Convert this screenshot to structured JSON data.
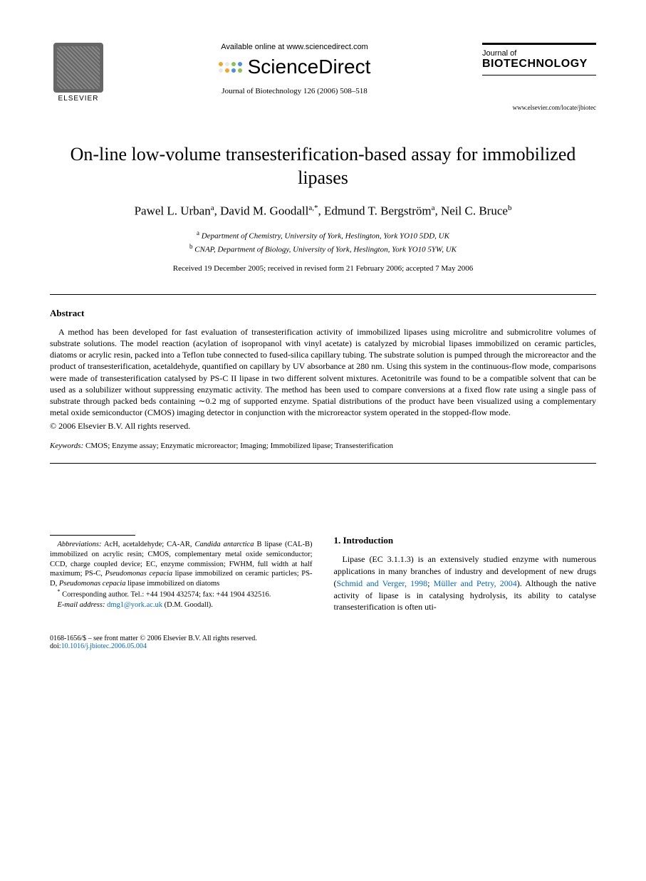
{
  "header": {
    "publisher": "ELSEVIER",
    "available_online": "Available online at www.sciencedirect.com",
    "sd_brand": "ScienceDirect",
    "sd_dot_colors": [
      "#f5a623",
      "#e8e8e8",
      "#8bc34a",
      "#4a90e2",
      "#e8e8e8",
      "#f5a623",
      "#4a90e2",
      "#8bc34a"
    ],
    "citation": "Journal of Biotechnology 126 (2006) 508–518",
    "journal_small": "Journal of",
    "journal_big": "BIOTECHNOLOGY",
    "journal_url": "www.elsevier.com/locate/jbiotec"
  },
  "title": "On-line low-volume transesterification-based assay for immobilized lipases",
  "authors_html": "Pawel L. Urban<sup>a</sup>, David M. Goodall<sup>a,*</sup>, Edmund T. Bergström<sup>a</sup>, Neil C. Bruce<sup>b</sup>",
  "affiliations": {
    "a": "Department of Chemistry, University of York, Heslington, York YO10 5DD, UK",
    "b": "CNAP, Department of Biology, University of York, Heslington, York YO10 5YW, UK"
  },
  "dates": "Received 19 December 2005; received in revised form 21 February 2006; accepted 7 May 2006",
  "abstract": {
    "heading": "Abstract",
    "text": "A method has been developed for fast evaluation of transesterification activity of immobilized lipases using microlitre and submicrolitre volumes of substrate solutions. The model reaction (acylation of isopropanol with vinyl acetate) is catalyzed by microbial lipases immobilized on ceramic particles, diatoms or acrylic resin, packed into a Teflon tube connected to fused-silica capillary tubing. The substrate solution is pumped through the microreactor and the product of transesterification, acetaldehyde, quantified on capillary by UV absorbance at 280 nm. Using this system in the continuous-flow mode, comparisons were made of transesterification catalysed by PS-C II lipase in two different solvent mixtures. Acetonitrile was found to be a compatible solvent that can be used as a solubilizer without suppressing enzymatic activity. The method has been used to compare conversions at a fixed flow rate using a single pass of substrate through packed beds containing ∼0.2 mg of supported enzyme. Spatial distributions of the product have been visualized using a complementary metal oxide semiconductor (CMOS) imaging detector in conjunction with the microreactor system operated in the stopped-flow mode.",
    "copyright": "© 2006 Elsevier B.V. All rights reserved."
  },
  "keywords": {
    "label": "Keywords:",
    "text": "CMOS; Enzyme assay; Enzymatic microreactor; Imaging; Immobilized lipase; Transesterification"
  },
  "footnotes": {
    "abbrev_label": "Abbreviations:",
    "abbrev_text": "AcH, acetaldehyde; CA-AR, Candida antarctica B lipase (CAL-B) immobilized on acrylic resin; CMOS, complementary metal oxide semiconductor; CCD, charge coupled device; EC, enzyme commission; FWHM, full width at half maximum; PS-C, Pseudomonas cepacia lipase immobilized on ceramic particles; PS-D, Pseudomonas cepacia lipase immobilized on diatoms",
    "corresponding": "Corresponding author. Tel.: +44 1904 432574; fax: +44 1904 432516.",
    "email_label": "E-mail address:",
    "email": "dmg1@york.ac.uk",
    "email_person": "(D.M. Goodall)."
  },
  "introduction": {
    "heading": "1. Introduction",
    "text_before_ref": "Lipase (EC 3.1.1.3) is an extensively studied enzyme with numerous applications in many branches of industry and development of new drugs (",
    "ref1": "Schmid and Verger, 1998",
    "ref_sep": "; ",
    "ref2": "Müller and Petry, 2004",
    "text_after_ref": "). Although the native activity of lipase is in catalysing hydrolysis, its ability to catalyse transesterification is often uti-"
  },
  "footer": {
    "front_matter": "0168-1656/$ – see front matter © 2006 Elsevier B.V. All rights reserved.",
    "doi_label": "doi:",
    "doi": "10.1016/j.jbiotec.2006.05.004"
  },
  "colors": {
    "link": "#0066cc",
    "text": "#000000",
    "background": "#ffffff"
  }
}
